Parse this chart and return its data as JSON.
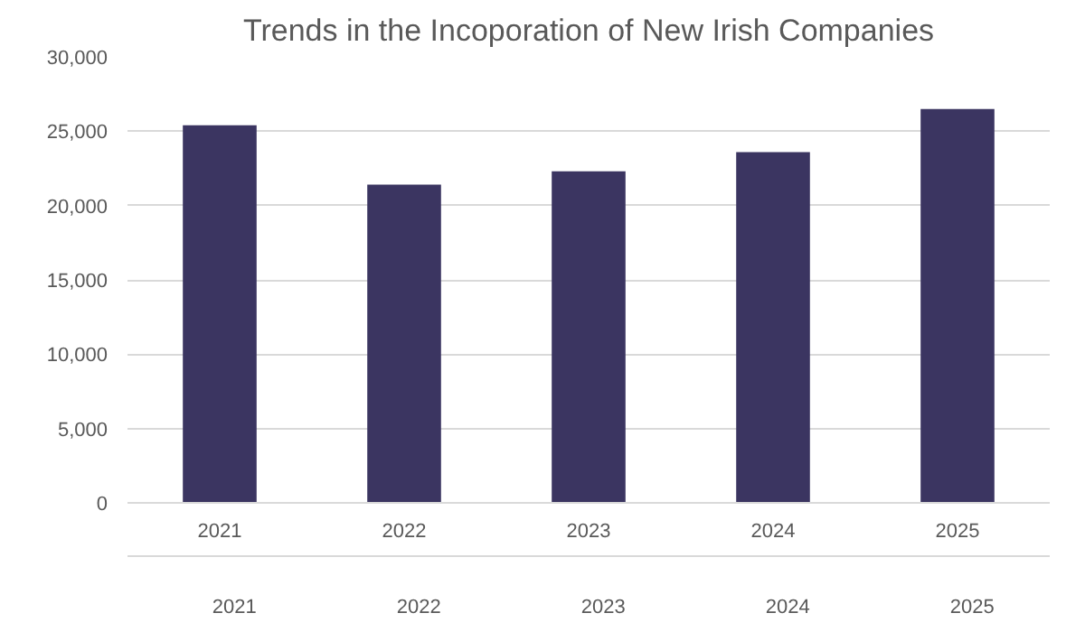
{
  "chart_data": {
    "type": "bar",
    "title": "Trends in the Incoporation of New Irish Companies",
    "categories": [
      "2021",
      "2022",
      "2023",
      "2024",
      "2025"
    ],
    "values": [
      25400,
      21400,
      22300,
      23600,
      26500
    ],
    "color": "#3b3561",
    "ylim": [
      0,
      30000
    ],
    "yticks": [
      {
        "value": 0,
        "label": "0"
      },
      {
        "value": 5000,
        "label": "5,000"
      },
      {
        "value": 10000,
        "label": "10,000"
      },
      {
        "value": 15000,
        "label": "15,000"
      },
      {
        "value": 20000,
        "label": "20,000"
      },
      {
        "value": 25000,
        "label": "25,000"
      },
      {
        "value": 30000,
        "label": "30,000"
      }
    ],
    "grid": "y",
    "annotations": [
      "2021",
      "2022",
      "2023",
      "2024",
      "2025"
    ]
  }
}
